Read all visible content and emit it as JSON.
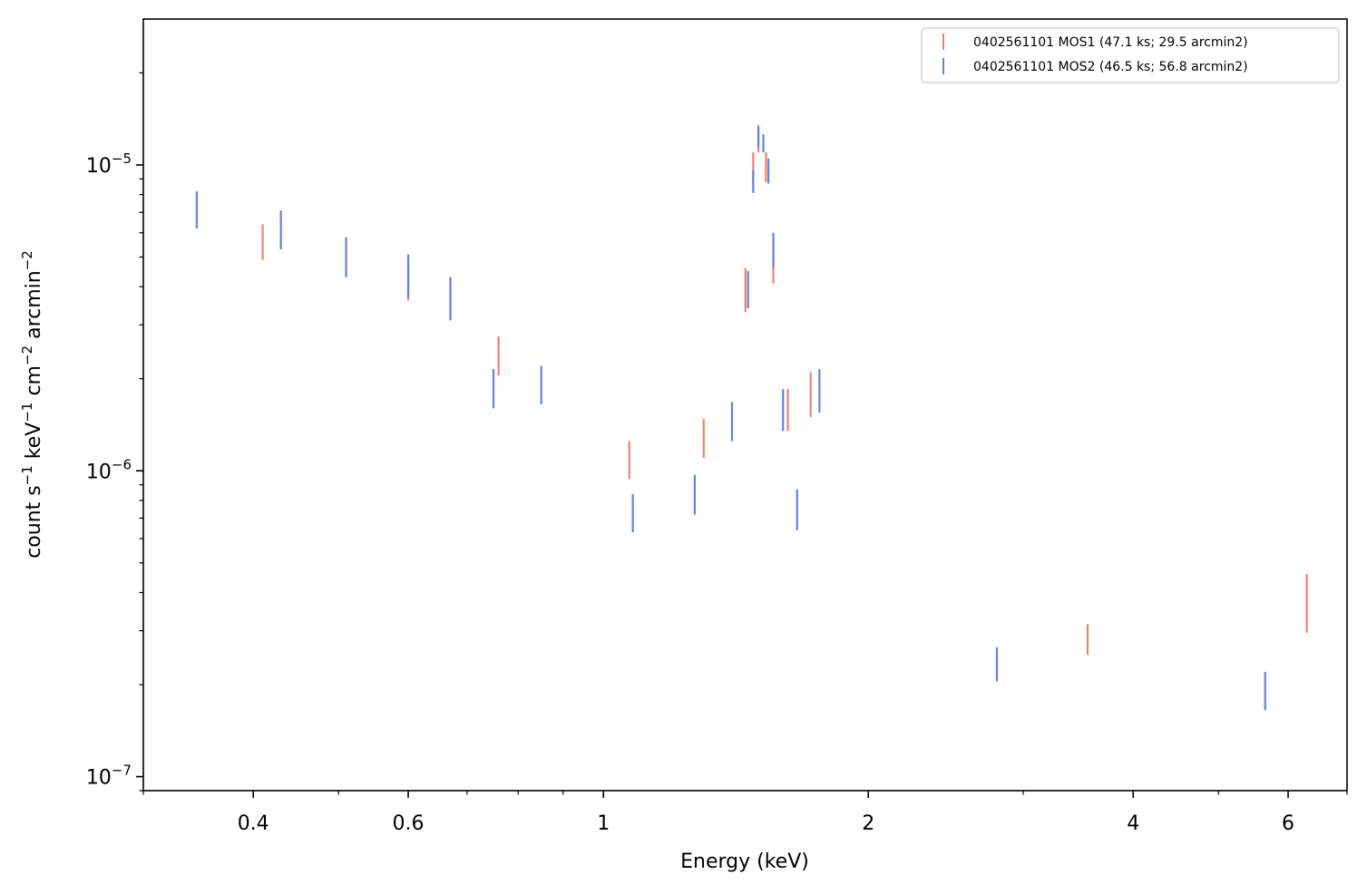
{
  "chart_data": {
    "type": "scatter",
    "x_scale": "log",
    "y_scale": "log",
    "xlim": [
      0.3,
      7.0
    ],
    "ylim": [
      9e-08,
      3e-05
    ],
    "xlabel": "Energy (keV)",
    "ylabel_parts": {
      "count": "count s",
      "s_exp": "−1",
      "kev": " keV",
      "kev_exp": "−1",
      "cm": " cm",
      "cm_exp": "−2",
      "arcmin": " arcmin",
      "arcmin_exp": "−2"
    },
    "x_ticks": [
      {
        "value": 0.4,
        "label": "0.4"
      },
      {
        "value": 0.6,
        "label": "0.6"
      },
      {
        "value": 1,
        "label": "1"
      },
      {
        "value": 2,
        "label": "2"
      },
      {
        "value": 4,
        "label": "4"
      },
      {
        "value": 6,
        "label": "6"
      }
    ],
    "y_ticks": [
      {
        "value": 1e-07,
        "base": "10",
        "exp": "−7"
      },
      {
        "value": 1e-06,
        "base": "10",
        "exp": "−6"
      },
      {
        "value": 1e-05,
        "base": "10",
        "exp": "−5"
      }
    ],
    "legend_position": "top-right",
    "series": [
      {
        "name": "0402561101 MOS1 (47.1 ks; 29.5 arcmin2)",
        "color": "#f4806a",
        "points": [
          {
            "x": 0.41,
            "ylo": 4.9e-06,
            "yhi": 6.4e-06
          },
          {
            "x": 0.6,
            "ylo": 3.6e-06,
            "yhi": 4.8e-06
          },
          {
            "x": 0.76,
            "ylo": 2.05e-06,
            "yhi": 2.75e-06
          },
          {
            "x": 1.07,
            "ylo": 9.4e-07,
            "yhi": 1.25e-06
          },
          {
            "x": 1.3,
            "ylo": 1.1e-06,
            "yhi": 1.48e-06
          },
          {
            "x": 1.45,
            "ylo": 3.3e-06,
            "yhi": 4.6e-06
          },
          {
            "x": 1.48,
            "ylo": 8.6e-06,
            "yhi": 1.1e-05
          },
          {
            "x": 1.5,
            "ylo": 1.1e-05,
            "yhi": 1.35e-05
          },
          {
            "x": 1.53,
            "ylo": 8.8e-06,
            "yhi": 1.1e-05
          },
          {
            "x": 1.56,
            "ylo": 4.1e-06,
            "yhi": 5.6e-06
          },
          {
            "x": 1.62,
            "ylo": 1.35e-06,
            "yhi": 1.85e-06
          },
          {
            "x": 1.72,
            "ylo": 1.5e-06,
            "yhi": 2.1e-06
          },
          {
            "x": 3.55,
            "ylo": 2.5e-07,
            "yhi": 3.15e-07
          },
          {
            "x": 6.3,
            "ylo": 2.95e-07,
            "yhi": 4.6e-07
          }
        ]
      },
      {
        "name": "0402561101 MOS2 (46.5 ks; 56.8 arcmin2)",
        "color": "#6482e0",
        "points": [
          {
            "x": 0.345,
            "ylo": 6.2e-06,
            "yhi": 8.2e-06
          },
          {
            "x": 0.43,
            "ylo": 5.3e-06,
            "yhi": 7.1e-06
          },
          {
            "x": 0.51,
            "ylo": 4.3e-06,
            "yhi": 5.8e-06
          },
          {
            "x": 0.6,
            "ylo": 3.7e-06,
            "yhi": 5.1e-06
          },
          {
            "x": 0.67,
            "ylo": 3.1e-06,
            "yhi": 4.3e-06
          },
          {
            "x": 0.75,
            "ylo": 1.6e-06,
            "yhi": 2.15e-06
          },
          {
            "x": 0.85,
            "ylo": 1.65e-06,
            "yhi": 2.2e-06
          },
          {
            "x": 1.08,
            "ylo": 6.3e-07,
            "yhi": 8.4e-07
          },
          {
            "x": 1.27,
            "ylo": 7.2e-07,
            "yhi": 9.7e-07
          },
          {
            "x": 1.4,
            "ylo": 1.25e-06,
            "yhi": 1.68e-06
          },
          {
            "x": 1.46,
            "ylo": 3.4e-06,
            "yhi": 4.5e-06
          },
          {
            "x": 1.48,
            "ylo": 8.1e-06,
            "yhi": 9.6e-06
          },
          {
            "x": 1.5,
            "ylo": 1.15e-05,
            "yhi": 1.33e-05
          },
          {
            "x": 1.52,
            "ylo": 1.1e-05,
            "yhi": 1.26e-05
          },
          {
            "x": 1.54,
            "ylo": 8.7e-06,
            "yhi": 1.05e-05
          },
          {
            "x": 1.56,
            "ylo": 4.6e-06,
            "yhi": 6e-06
          },
          {
            "x": 1.6,
            "ylo": 1.35e-06,
            "yhi": 1.85e-06
          },
          {
            "x": 1.66,
            "ylo": 6.4e-07,
            "yhi": 8.7e-07
          },
          {
            "x": 1.76,
            "ylo": 1.55e-06,
            "yhi": 2.15e-06
          },
          {
            "x": 2.8,
            "ylo": 2.05e-07,
            "yhi": 2.65e-07
          },
          {
            "x": 5.65,
            "ylo": 1.65e-07,
            "yhi": 2.2e-07
          }
        ]
      }
    ]
  }
}
